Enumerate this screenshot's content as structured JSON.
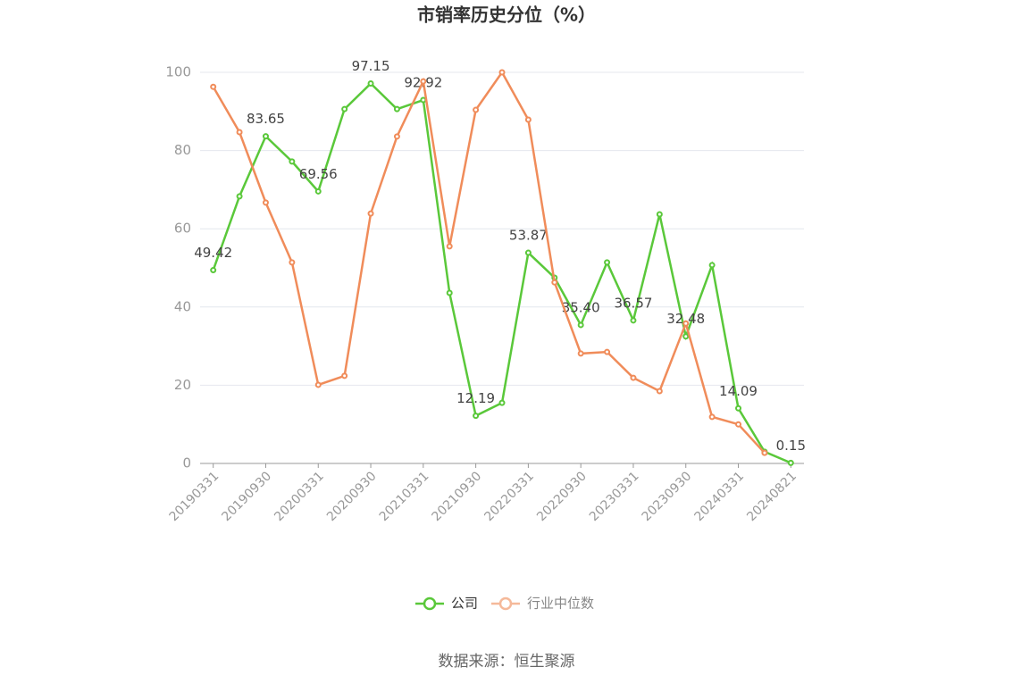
{
  "chart_data": {
    "type": "line",
    "title": "市销率历史分位（%）",
    "categories": [
      "20190331",
      null,
      "20190930",
      null,
      "20200331",
      null,
      "20200930",
      null,
      "20210331",
      null,
      "20210930",
      null,
      "20220331",
      null,
      "20220930",
      null,
      "20230331",
      null,
      "20230930",
      null,
      "20240331",
      null,
      "20240821"
    ],
    "series": [
      {
        "name": "公司",
        "color": "#5ac83a",
        "values": [
          49.42,
          68.3,
          83.65,
          77.2,
          69.56,
          90.6,
          97.15,
          90.6,
          92.92,
          43.6,
          12.19,
          15.5,
          53.87,
          47.5,
          35.4,
          51.4,
          36.57,
          63.7,
          32.48,
          50.7,
          14.09,
          3.0,
          0.15
        ],
        "value_labels": [
          "49.42",
          null,
          "83.65",
          null,
          "69.56",
          null,
          "97.15",
          null,
          "92.92",
          null,
          "12.19",
          null,
          "53.87",
          null,
          "35.40",
          null,
          "36.57",
          null,
          "32.48",
          null,
          "14.09",
          null,
          "0.15"
        ]
      },
      {
        "name": "行业中位数",
        "color": "#f08c5a",
        "values": [
          96.3,
          84.7,
          66.7,
          51.4,
          20.1,
          22.4,
          63.9,
          83.6,
          97.7,
          55.5,
          90.4,
          100,
          87.9,
          46.3,
          28.1,
          28.5,
          21.9,
          18.5,
          35.8,
          11.9,
          10.0,
          2.7,
          null
        ]
      }
    ],
    "ylim": [
      0,
      100
    ],
    "yticks": [
      0,
      20,
      40,
      60,
      80,
      100
    ],
    "grid": true,
    "source": "数据来源：恒生聚源"
  }
}
